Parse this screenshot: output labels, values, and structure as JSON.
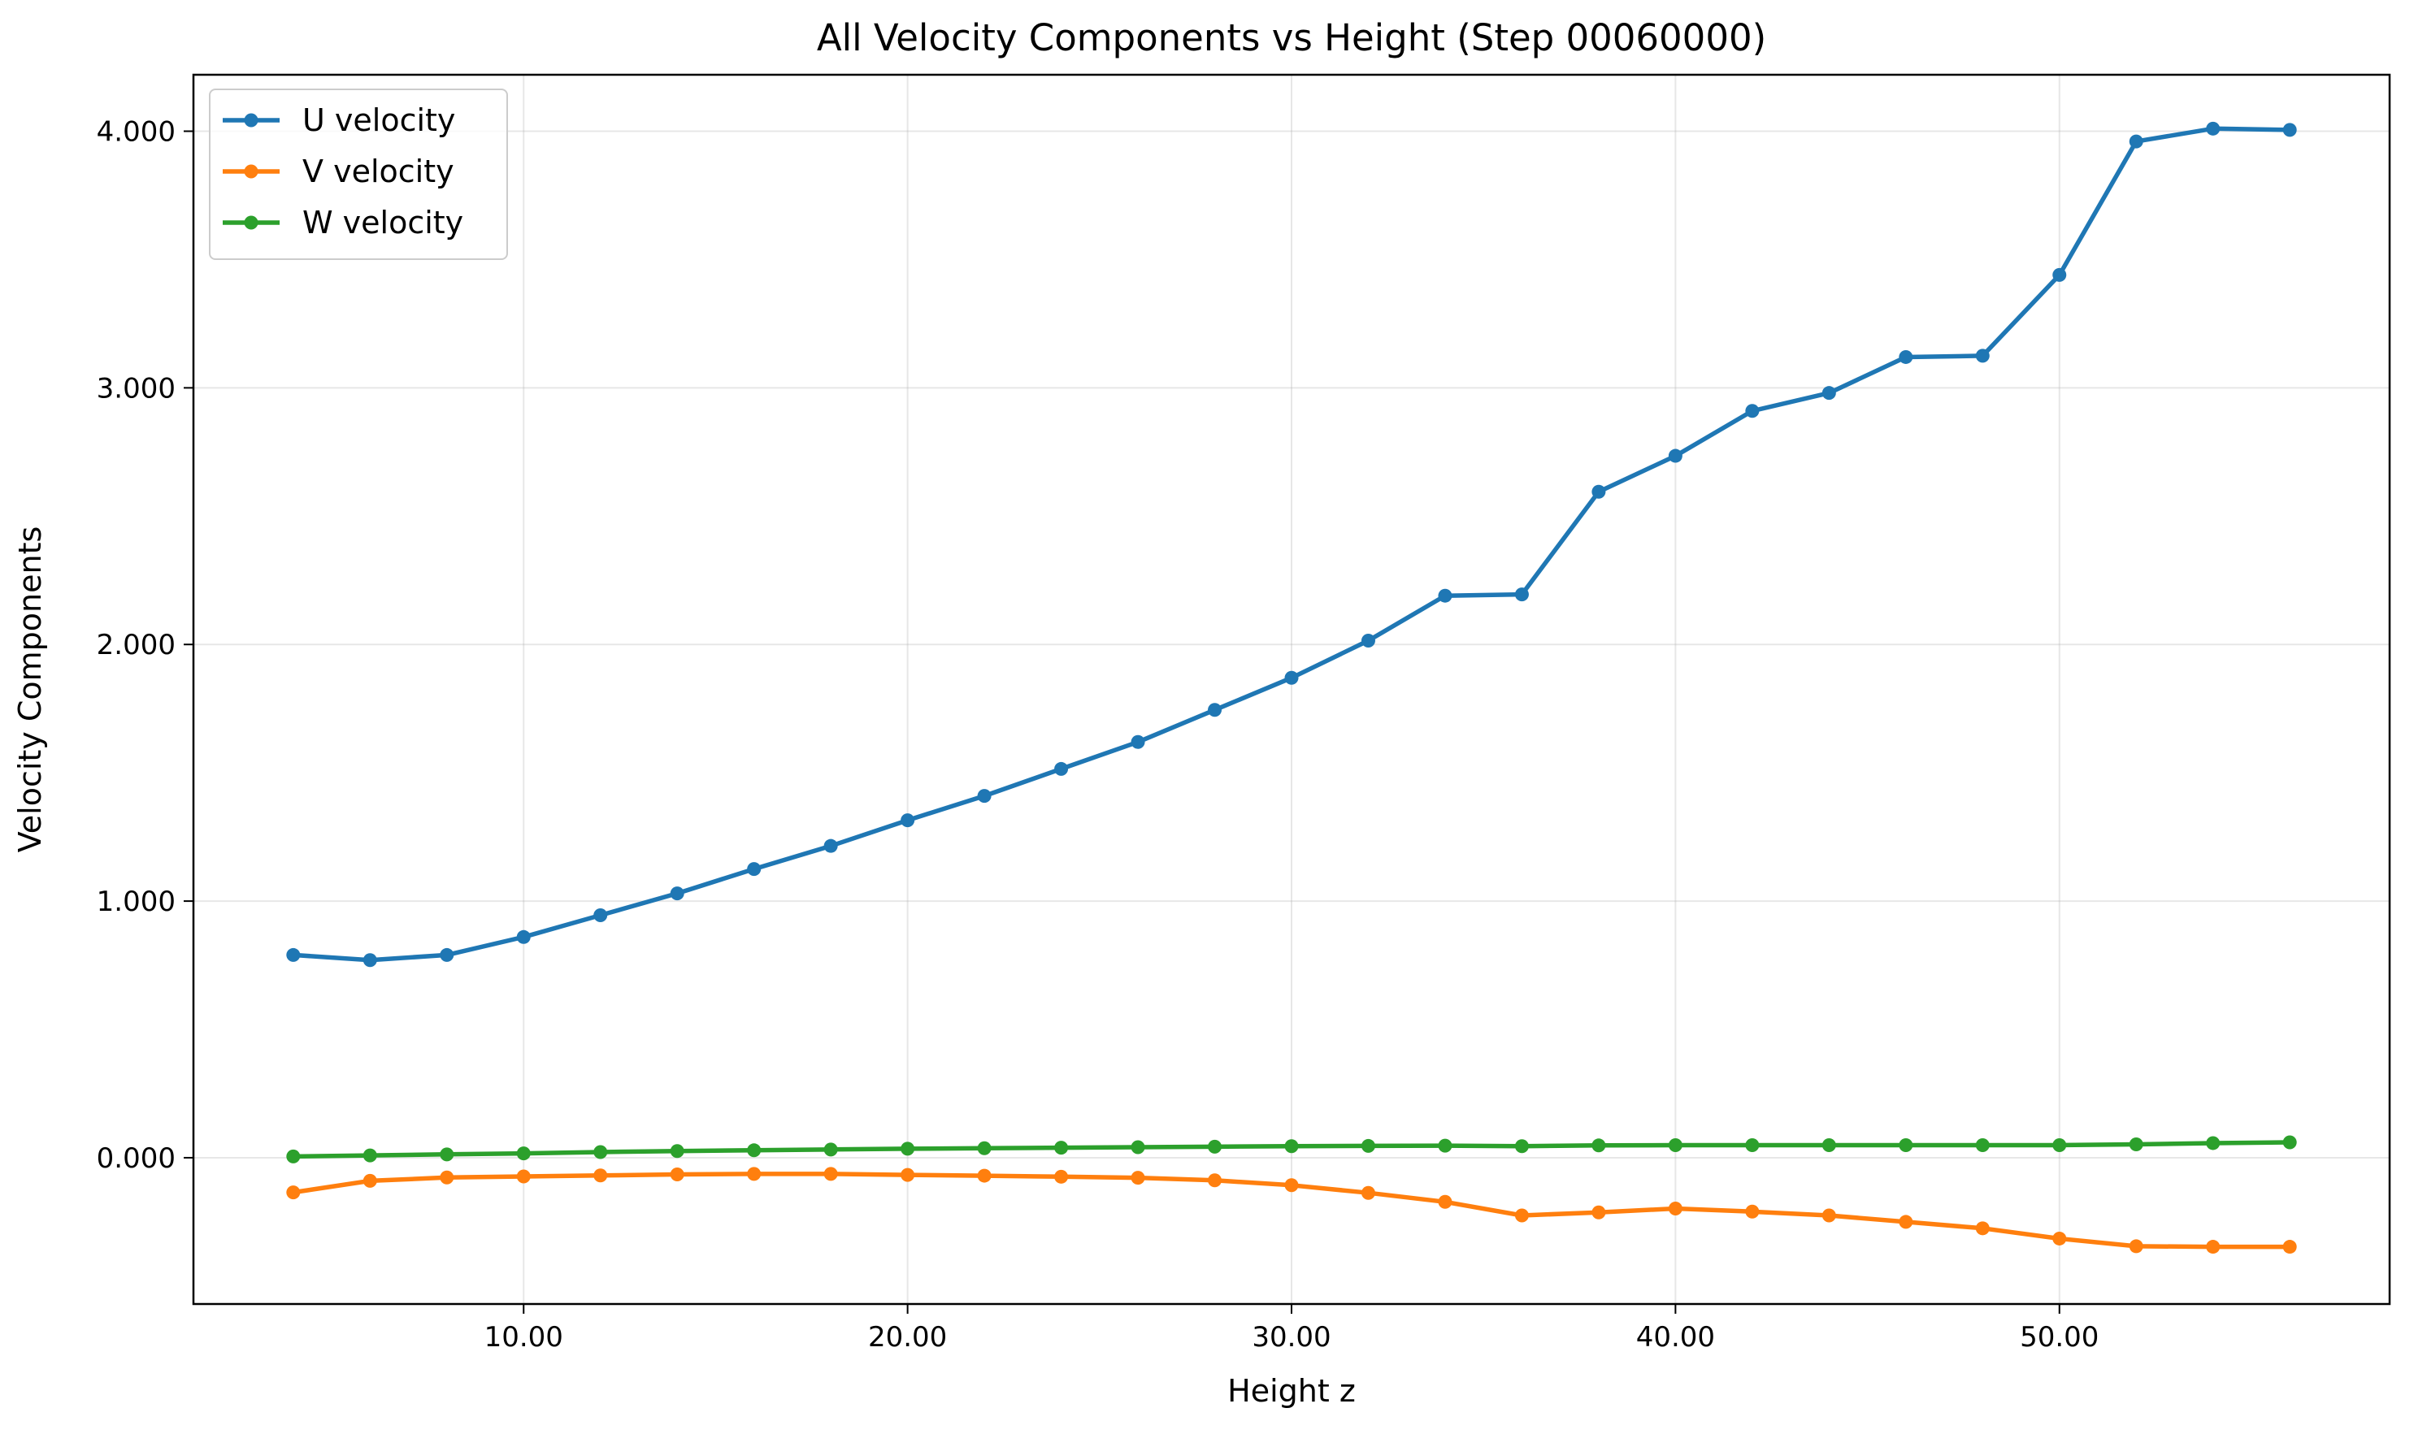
{
  "chart_data": {
    "type": "line",
    "title": "All Velocity Components vs Height (Step 00060000)",
    "xlabel": "Height z",
    "ylabel": "Velocity Components",
    "xlim": [
      1.4,
      58.6
    ],
    "ylim": [
      -0.57,
      4.22
    ],
    "x_ticks": [
      10,
      20,
      30,
      40,
      50
    ],
    "x_tick_labels": [
      "10.00",
      "20.00",
      "30.00",
      "40.00",
      "50.00"
    ],
    "y_ticks": [
      0,
      1,
      2,
      3,
      4
    ],
    "y_tick_labels": [
      "0.000",
      "1.000",
      "2.000",
      "3.000",
      "4.000"
    ],
    "grid": true,
    "legend_position": "top-left",
    "x": [
      4,
      6,
      8,
      10,
      12,
      14,
      16,
      18,
      20,
      22,
      24,
      26,
      28,
      30,
      32,
      34,
      36,
      38,
      40,
      42,
      44,
      46,
      48,
      50,
      52,
      54,
      56
    ],
    "series": [
      {
        "name": "U velocity",
        "color": "#1f77b4",
        "values": [
          0.79,
          0.77,
          0.79,
          0.86,
          0.945,
          1.03,
          1.125,
          1.215,
          1.315,
          1.41,
          1.515,
          1.62,
          1.745,
          1.87,
          2.015,
          2.19,
          2.195,
          2.595,
          2.735,
          2.91,
          2.98,
          3.12,
          3.125,
          3.44,
          3.96,
          4.01,
          4.005
        ]
      },
      {
        "name": "V velocity",
        "color": "#ff7f0e",
        "values": [
          -0.135,
          -0.09,
          -0.077,
          -0.073,
          -0.069,
          -0.065,
          -0.063,
          -0.063,
          -0.067,
          -0.07,
          -0.074,
          -0.078,
          -0.088,
          -0.107,
          -0.137,
          -0.172,
          -0.225,
          -0.213,
          -0.198,
          -0.21,
          -0.225,
          -0.25,
          -0.275,
          -0.315,
          -0.345,
          -0.347,
          -0.347
        ]
      },
      {
        "name": "W velocity",
        "color": "#2ca02c",
        "values": [
          0.005,
          0.009,
          0.013,
          0.017,
          0.022,
          0.026,
          0.029,
          0.032,
          0.035,
          0.037,
          0.039,
          0.041,
          0.043,
          0.045,
          0.046,
          0.047,
          0.045,
          0.048,
          0.049,
          0.049,
          0.049,
          0.049,
          0.049,
          0.049,
          0.052,
          0.057,
          0.06
        ]
      }
    ]
  }
}
